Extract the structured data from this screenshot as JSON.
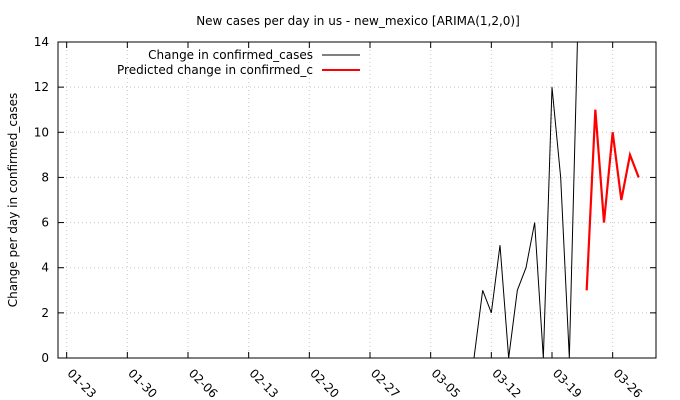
{
  "chart_data": {
    "type": "line",
    "title": "New cases per day in us - new_mexico [ARIMA(1,2,0)]",
    "xlabel": "",
    "ylabel": "Change per day in confirmed_cases",
    "ylim": [
      0,
      14
    ],
    "yticks": [
      0,
      2,
      4,
      6,
      8,
      10,
      12,
      14
    ],
    "x_ticks": [
      "01-23",
      "01-30",
      "02-06",
      "02-13",
      "02-20",
      "02-27",
      "03-05",
      "03-12",
      "03-19",
      "03-26"
    ],
    "x_start": "01-22",
    "x_end": "03-31",
    "grid": true,
    "legend_position": "top-left",
    "series": [
      {
        "name": "Change in confirmed_cases",
        "color": "#000000",
        "points": [
          [
            "01-22",
            0
          ],
          [
            "01-23",
            0
          ],
          [
            "01-24",
            0
          ],
          [
            "01-25",
            0
          ],
          [
            "01-26",
            0
          ],
          [
            "01-27",
            0
          ],
          [
            "01-28",
            0
          ],
          [
            "01-29",
            0
          ],
          [
            "01-30",
            0
          ],
          [
            "01-31",
            0
          ],
          [
            "02-01",
            0
          ],
          [
            "02-02",
            0
          ],
          [
            "02-03",
            0
          ],
          [
            "02-04",
            0
          ],
          [
            "02-05",
            0
          ],
          [
            "02-06",
            0
          ],
          [
            "02-07",
            0
          ],
          [
            "02-08",
            0
          ],
          [
            "02-09",
            0
          ],
          [
            "02-10",
            0
          ],
          [
            "02-11",
            0
          ],
          [
            "02-12",
            0
          ],
          [
            "02-13",
            0
          ],
          [
            "02-14",
            0
          ],
          [
            "02-15",
            0
          ],
          [
            "02-16",
            0
          ],
          [
            "02-17",
            0
          ],
          [
            "02-18",
            0
          ],
          [
            "02-19",
            0
          ],
          [
            "02-20",
            0
          ],
          [
            "02-21",
            0
          ],
          [
            "02-22",
            0
          ],
          [
            "02-23",
            0
          ],
          [
            "02-24",
            0
          ],
          [
            "02-25",
            0
          ],
          [
            "02-26",
            0
          ],
          [
            "02-27",
            0
          ],
          [
            "02-28",
            0
          ],
          [
            "02-29",
            0
          ],
          [
            "03-01",
            0
          ],
          [
            "03-02",
            0
          ],
          [
            "03-03",
            0
          ],
          [
            "03-04",
            0
          ],
          [
            "03-05",
            0
          ],
          [
            "03-06",
            0
          ],
          [
            "03-07",
            0
          ],
          [
            "03-08",
            0
          ],
          [
            "03-09",
            0
          ],
          [
            "03-10",
            0
          ],
          [
            "03-11",
            3
          ],
          [
            "03-12",
            2
          ],
          [
            "03-13",
            5
          ],
          [
            "03-14",
            0
          ],
          [
            "03-15",
            3
          ],
          [
            "03-16",
            4
          ],
          [
            "03-17",
            6
          ],
          [
            "03-18",
            0
          ],
          [
            "03-19",
            12
          ],
          [
            "03-20",
            8
          ],
          [
            "03-21",
            0
          ],
          [
            "03-22",
            15
          ]
        ]
      },
      {
        "name": "Predicted change in confirmed_c",
        "color": "#ff0000",
        "points": [
          [
            "03-23",
            3
          ],
          [
            "03-24",
            11
          ],
          [
            "03-25",
            6
          ],
          [
            "03-26",
            10
          ],
          [
            "03-27",
            7
          ],
          [
            "03-28",
            9
          ],
          [
            "03-29",
            8
          ]
        ]
      }
    ]
  }
}
